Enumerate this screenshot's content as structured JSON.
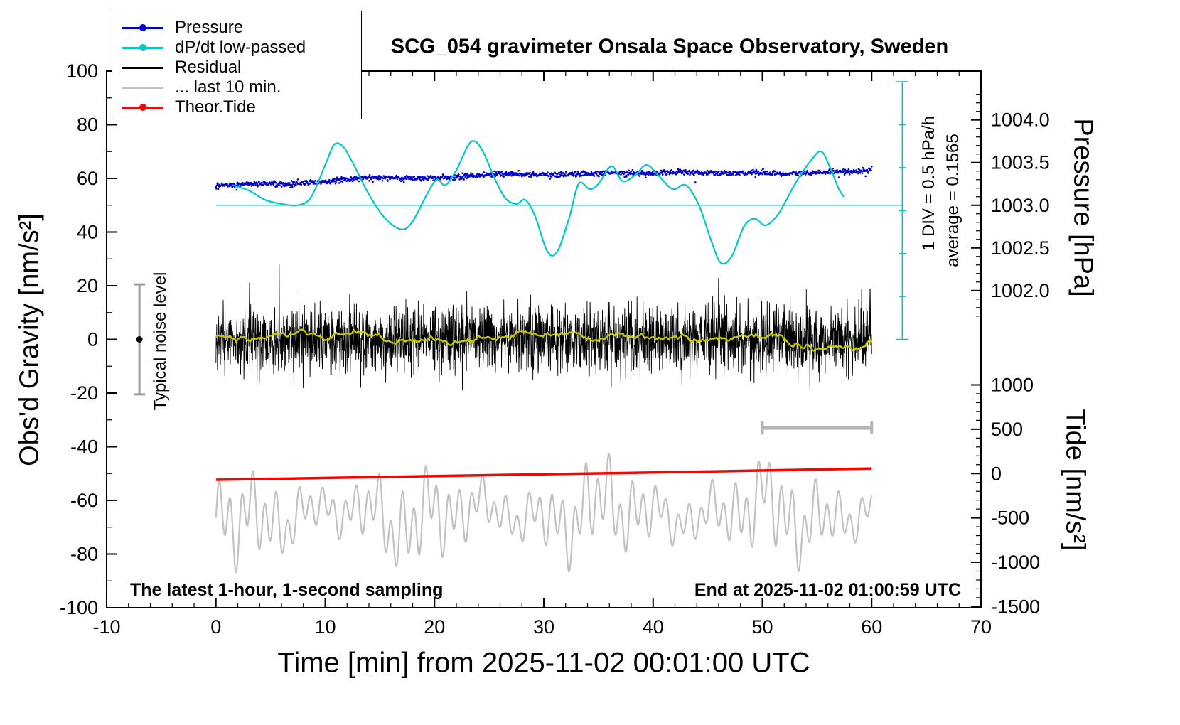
{
  "title": "SCG_054 gravimeter Onsala Space Observatory, Sweden",
  "annotations": {
    "noise_level_label": "Typical noise level",
    "div_label": "1 DIV = 0.5 hPa/h",
    "average_label": "average = 0.1565",
    "sampling_note": "The latest 1-hour, 1-second sampling",
    "end_note": "End at 2025-11-02 01:00:59 UTC"
  },
  "legend": {
    "items": [
      {
        "label": "Pressure",
        "color": "#0000cd",
        "marker": true
      },
      {
        "label": "dP/dt low-passed",
        "color": "#00c8c8",
        "marker": true
      },
      {
        "label": "Residual",
        "color": "#000000",
        "marker": false
      },
      {
        "label": "... last 10 min.",
        "color": "#c2c2c2",
        "marker": false
      },
      {
        "label": "Theor.Tide",
        "color": "#ff0000",
        "marker": true
      }
    ]
  },
  "chart_data": {
    "type": "line",
    "title": "SCG_054 gravimeter Onsala Space Observatory, Sweden",
    "xlabel": "Time [min] from 2025-11-02 00:01:00 UTC",
    "x_range": [
      -10,
      70
    ],
    "x_ticks": {
      "values": [
        -10,
        0,
        10,
        20,
        30,
        40,
        50,
        60,
        70
      ],
      "labels": [
        "-10",
        "0",
        "10",
        "20",
        "30",
        "40",
        "50",
        "60",
        "70"
      ]
    },
    "minor_x_step": 2,
    "y_left_label": "Obs'd Gravity [nm/s²]",
    "y_left_range": [
      -100,
      100
    ],
    "y_left_ticks": {
      "values": [
        -100,
        -80,
        -60,
        -40,
        -20,
        0,
        20,
        40,
        60,
        80,
        100
      ],
      "labels": [
        "-100",
        "-80",
        "-60",
        "-40",
        "-20",
        "0",
        "20",
        "40",
        "60",
        "80",
        "100"
      ]
    },
    "minor_y_step": 10,
    "pressure_axis": {
      "label": "Pressure [hPa]",
      "ref_hpa": 1003.0,
      "ref_gravity": 50,
      "hpa_to_gravity": 31.8,
      "ticks": {
        "values": [
          1002.0,
          1002.5,
          1003.0,
          1003.5,
          1004.0
        ],
        "labels": [
          "1002.0",
          "1002.5",
          "1003.0",
          "1003.5",
          "1004.0"
        ]
      },
      "minor_step": 0.1
    },
    "tide_axis": {
      "label": "Tide [nm/s²]",
      "ref_gravity": -50,
      "tide_to_gravity": 0.03305,
      "ticks": {
        "values": [
          -1500,
          -1000,
          -500,
          0,
          500,
          1000
        ],
        "labels": [
          "-1500",
          "-1000",
          "-500",
          "0",
          "500",
          "1000"
        ]
      },
      "minor_step": 100
    },
    "zero_dpdt_line": {
      "gravity": 50,
      "x_from": 0,
      "x_to": 62.8
    },
    "dpdt_ruler": {
      "x": 62.8,
      "g_from": 0,
      "g_to": 96,
      "divisions": 6
    },
    "ten_min_bar": {
      "y_gravity": -33,
      "x_from": 50,
      "x_to": 60
    },
    "noise_bar": {
      "x": -7,
      "g_from": -20.5,
      "g_to": 20.5,
      "dot_g": 0
    },
    "series": [
      {
        "name": "... last 10 min.",
        "style": "wavesum",
        "color": "#c2c2c2",
        "width": 2.2,
        "center": -65,
        "components": [
          [
            8,
            1.05
          ],
          [
            5,
            2.35
          ],
          [
            4,
            5.2
          ],
          [
            3,
            12.7
          ]
        ],
        "envelope": [
          0.35,
          16.5
        ],
        "n": 1500,
        "x_span": [
          0,
          60
        ]
      },
      {
        "name": "Theor.Tide",
        "style": "line",
        "axis": "tide",
        "color": "#ff0000",
        "width": 3.5,
        "points": [
          [
            0,
            -70
          ],
          [
            12,
            -45
          ],
          [
            24,
            -20
          ],
          [
            36,
            4
          ],
          [
            48,
            30
          ],
          [
            60,
            57
          ]
        ]
      },
      {
        "name": "Pressure",
        "style": "dots",
        "color": "#0000cd",
        "dot_size": 2.6,
        "noise_sd": 0.5,
        "outlier_prob": 0.008,
        "n": 1400,
        "points": [
          [
            0,
            57.3
          ],
          [
            2,
            57.8
          ],
          [
            4,
            58.2
          ],
          [
            6,
            57.9
          ],
          [
            8,
            58.3
          ],
          [
            10,
            59.0
          ],
          [
            12,
            59.8
          ],
          [
            14,
            60.3
          ],
          [
            16,
            60.2
          ],
          [
            18,
            60.0
          ],
          [
            20,
            60.2
          ],
          [
            22,
            60.4
          ],
          [
            24,
            61.0
          ],
          [
            26,
            61.6
          ],
          [
            28,
            61.7
          ],
          [
            30,
            61.3
          ],
          [
            32,
            61.5
          ],
          [
            34,
            61.8
          ],
          [
            36,
            62.0
          ],
          [
            38,
            61.9
          ],
          [
            40,
            62.1
          ],
          [
            42,
            62.3
          ],
          [
            44,
            62.1
          ],
          [
            46,
            62.0
          ],
          [
            48,
            62.2
          ],
          [
            50,
            62.0
          ],
          [
            52,
            61.7
          ],
          [
            54,
            61.9
          ],
          [
            56,
            62.3
          ],
          [
            58,
            62.6
          ],
          [
            60,
            63.0
          ]
        ]
      },
      {
        "name": "dP/dt low-passed",
        "style": "smooth",
        "color": "#00c8c8",
        "width": 2.2,
        "points": [
          [
            1.5,
            57.5
          ],
          [
            3,
            55.5
          ],
          [
            4.5,
            52
          ],
          [
            6,
            50.5
          ],
          [
            7.5,
            50
          ],
          [
            8.7,
            53
          ],
          [
            10,
            65
          ],
          [
            10.8,
            72.5
          ],
          [
            11.6,
            72
          ],
          [
            12.5,
            66
          ],
          [
            14,
            54
          ],
          [
            15.5,
            45
          ],
          [
            17,
            41
          ],
          [
            18,
            44
          ],
          [
            19.3,
            54
          ],
          [
            20.2,
            59.5
          ],
          [
            21,
            57.5
          ],
          [
            22,
            63
          ],
          [
            23.3,
            73.5
          ],
          [
            24.3,
            71
          ],
          [
            25.5,
            60
          ],
          [
            26.5,
            52.5
          ],
          [
            27.5,
            50.5
          ],
          [
            28.3,
            52
          ],
          [
            29.2,
            46
          ],
          [
            30.3,
            33
          ],
          [
            31.2,
            32.5
          ],
          [
            32.3,
            45
          ],
          [
            33.2,
            58
          ],
          [
            34.2,
            56
          ],
          [
            35,
            58
          ],
          [
            36.2,
            64.5
          ],
          [
            37.2,
            59
          ],
          [
            38.3,
            61
          ],
          [
            39.4,
            65
          ],
          [
            40.5,
            61
          ],
          [
            41.8,
            56
          ],
          [
            43,
            57.5
          ],
          [
            44.2,
            50
          ],
          [
            45.3,
            37
          ],
          [
            46.2,
            28.5
          ],
          [
            47.2,
            31
          ],
          [
            48.3,
            42
          ],
          [
            49.3,
            45
          ],
          [
            50.3,
            42.5
          ],
          [
            51.5,
            47
          ],
          [
            53,
            58
          ],
          [
            54.5,
            67
          ],
          [
            55.4,
            70
          ],
          [
            56.2,
            64
          ],
          [
            57,
            56
          ],
          [
            57.5,
            53
          ]
        ]
      },
      {
        "name": "Residual",
        "style": "noise",
        "color": "#000000",
        "width": 0.9,
        "center": 0,
        "sd": 6,
        "spike_prob": 0.025,
        "spike_scale": 2.0,
        "clamp": 28,
        "n": 2600,
        "x_span": [
          0,
          60
        ]
      },
      {
        "name": "Residual smoothed",
        "style": "walk",
        "color": "#c8c800",
        "width": 2.4,
        "center": 0.4,
        "step_sd": 0.55,
        "pull": 0.93,
        "n": 420,
        "x_span": [
          0,
          60
        ]
      }
    ]
  }
}
